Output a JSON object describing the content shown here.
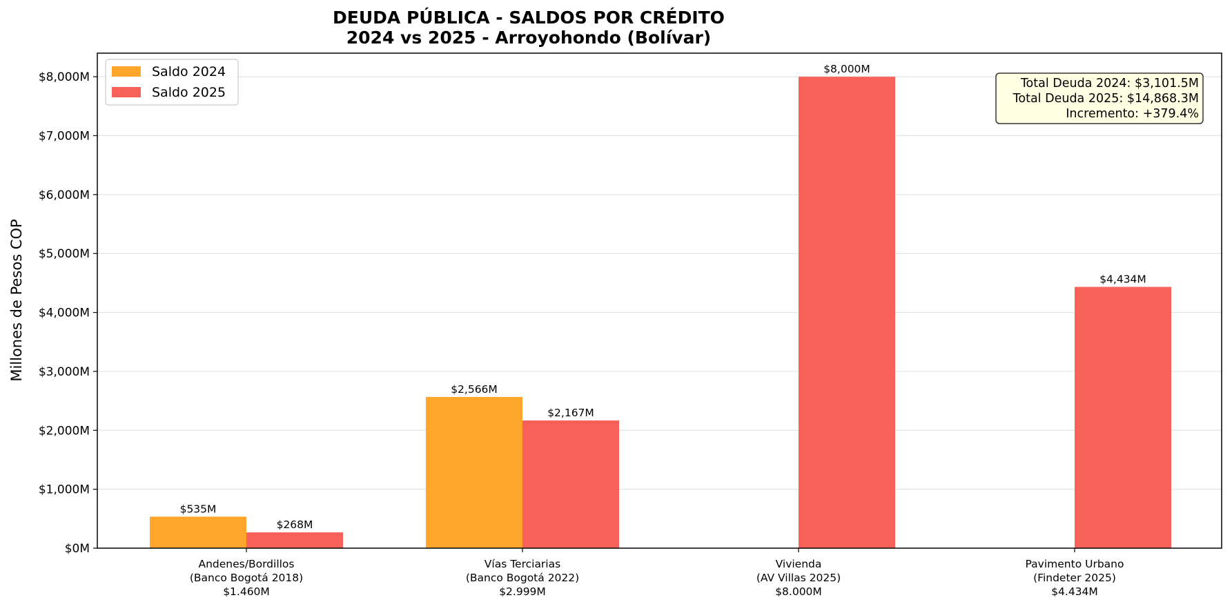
{
  "chart_data": {
    "type": "bar",
    "title": [
      "DEUDA PÚBLICA - SALDOS POR CRÉDITO",
      "2024 vs 2025 - Arroyohondo (Bolívar)"
    ],
    "ylabel": "Millones de Pesos COP",
    "xlabel": "",
    "ylim": [
      0,
      8400
    ],
    "yticks": [
      0,
      1000,
      2000,
      3000,
      4000,
      5000,
      6000,
      7000,
      8000
    ],
    "ytick_labels": [
      "$0M",
      "$1,000M",
      "$2,000M",
      "$3,000M",
      "$4,000M",
      "$5,000M",
      "$6,000M",
      "$7,000M",
      "$8,000M"
    ],
    "grid": "horizontal",
    "legend_position": "top-left",
    "categories": [
      [
        "Andenes/Bordillos",
        "(Banco Bogotá 2018)",
        "$1.460M"
      ],
      [
        "Vías Terciarias",
        "(Banco Bogotá 2022)",
        "$2.999M"
      ],
      [
        "Vivienda",
        "(AV Villas 2025)",
        "$8.000M"
      ],
      [
        "Pavimento Urbano",
        "(Findeter 2025)",
        "$4.434M"
      ]
    ],
    "series": [
      {
        "name": "Saldo 2024",
        "color": "#FFA62B",
        "values": [
          535,
          2566,
          0,
          0
        ],
        "labels": [
          "$535M",
          "$2,566M",
          "",
          ""
        ]
      },
      {
        "name": "Saldo 2025",
        "color": "#F76157",
        "values": [
          268,
          2167,
          8000,
          4434
        ],
        "labels": [
          "$268M",
          "$2,167M",
          "$8,000M",
          "$4,434M"
        ]
      }
    ],
    "annotation": [
      "Total Deuda 2024: $3,101.5M",
      "Total Deuda 2025: $14,868.3M",
      "Incremento: +379.4%"
    ]
  }
}
